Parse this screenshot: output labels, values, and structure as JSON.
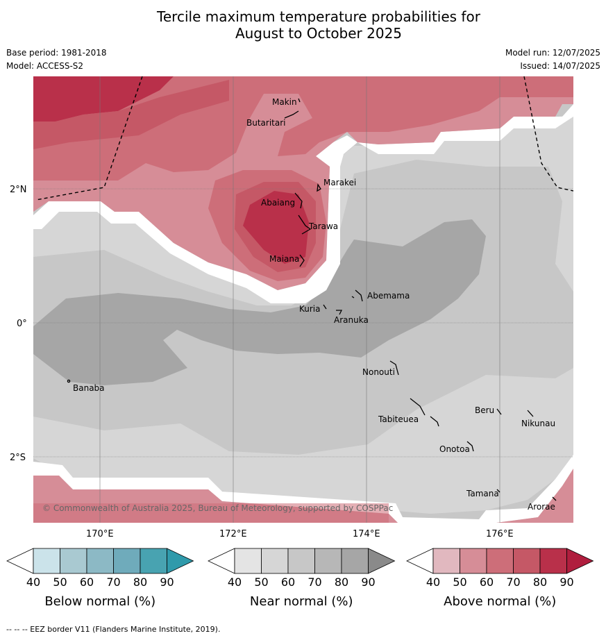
{
  "title_line1": "Tercile maximum temperature probabilities for",
  "title_line2": "August to October 2025",
  "base_period": "Base period: 1981-2018",
  "model": "Model: ACCESS-S2",
  "model_run": "Model run: 12/07/2025",
  "issued": "Issued: 14/07/2025",
  "copyright": "© Commonwealth of Australia 2025, Bureau of Meteorology, supported by COSPPac",
  "footer": "--  --  -- EEZ border V11 (Flanders Marine Institute, 2019).",
  "lon_labels": [
    "170°E",
    "172°E",
    "174°E",
    "176°E"
  ],
  "lat_labels": [
    "2°N",
    "0°",
    "2°S"
  ],
  "places": [
    "Makin",
    "Butaritari",
    "Marakei",
    "Abaiang",
    "Tarawa",
    "Maiana",
    "Abemama",
    "Kuria",
    "Aranuka",
    "Nonouti",
    "Banaba",
    "Tabiteuea",
    "Beru",
    "Nikunau",
    "Onotoa",
    "Tamana",
    "Arorae"
  ],
  "colorbars": [
    {
      "label": "Below normal (%)",
      "ticks": [
        "40",
        "50",
        "60",
        "70",
        "80",
        "90"
      ],
      "colors": [
        "#cbe3ea",
        "#a9c9d1",
        "#8cb9c5",
        "#6fabbb",
        "#48a3b1",
        "#2f9aab"
      ]
    },
    {
      "label": "Near normal (%)",
      "ticks": [
        "40",
        "50",
        "60",
        "70",
        "80",
        "90"
      ],
      "colors": [
        "#e4e4e4",
        "#d6d6d6",
        "#c7c7c7",
        "#b7b7b7",
        "#a6a6a6",
        "#8a8a8a"
      ]
    },
    {
      "label": "Above normal (%)",
      "ticks": [
        "40",
        "50",
        "60",
        "70",
        "80",
        "90"
      ],
      "colors": [
        "#e1b8bf",
        "#d68d97",
        "#cd6e79",
        "#c55866",
        "#b9304a",
        "#b01e3e"
      ]
    }
  ]
}
